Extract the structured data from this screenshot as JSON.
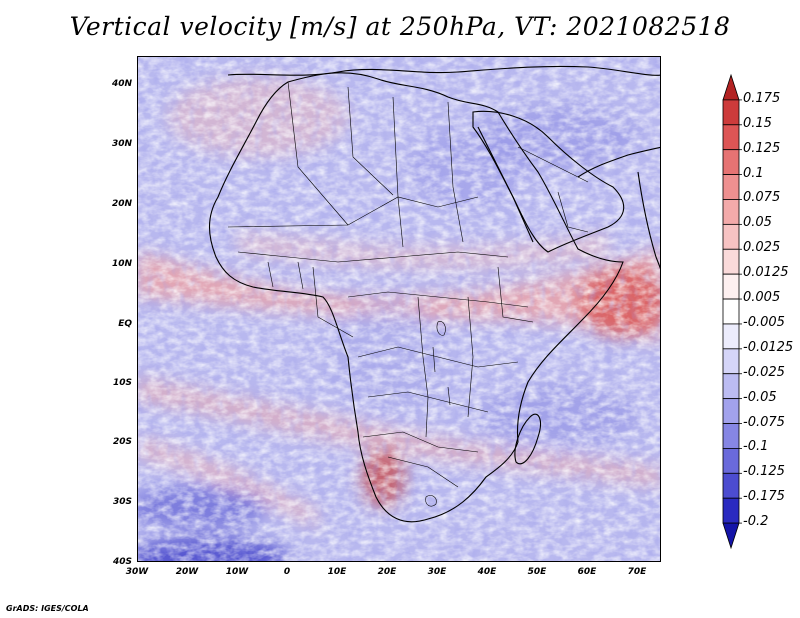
{
  "title": "Vertical velocity [m/s] at 250hPa, VT: 2021082518",
  "credit": "GrADS: IGES/COLA",
  "map": {
    "projection": "lat-lon",
    "lon_range": [
      -30,
      75
    ],
    "lat_range": [
      -40,
      45
    ],
    "lat_labels": [
      "40N",
      "30N",
      "20N",
      "10N",
      "EQ",
      "10S",
      "20S",
      "30S",
      "40S"
    ],
    "lon_labels": [
      "30W",
      "20W",
      "10W",
      "0",
      "10E",
      "20E",
      "30E",
      "40E",
      "50E",
      "60E",
      "70E"
    ]
  },
  "colorbar": {
    "labels": [
      "0.175",
      "0.15",
      "0.125",
      "0.1",
      "0.075",
      "0.05",
      "0.025",
      "0.0125",
      "0.005",
      "-0.005",
      "-0.0125",
      "-0.025",
      "-0.05",
      "-0.075",
      "-0.1",
      "-0.125",
      "-0.175",
      "-0.2"
    ],
    "colors": [
      "#b22222",
      "#cd3b3b",
      "#dd5555",
      "#e67373",
      "#ee9090",
      "#f3aaaa",
      "#f7c3c3",
      "#fadada",
      "#fdf0f0",
      "#ffffff",
      "#ececfc",
      "#d5d5f8",
      "#bcbcf2",
      "#a2a2ec",
      "#8686e4",
      "#6a6adb",
      "#4c4cd0",
      "#2a2ac0",
      "#1414a8"
    ]
  }
}
